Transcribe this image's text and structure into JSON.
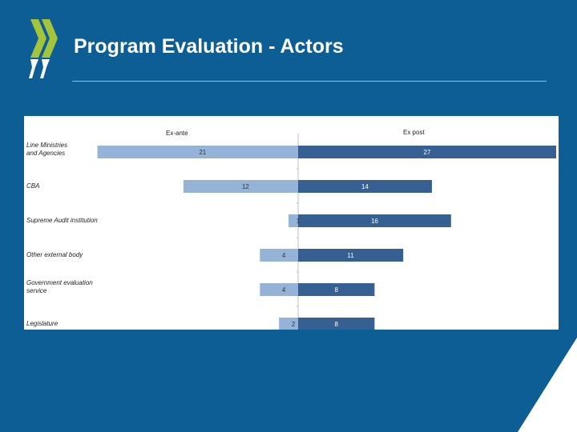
{
  "slide": {
    "title": "Program Evaluation - Actors"
  },
  "colors": {
    "background": "#0d5e95",
    "ex_ante_bar": "#95b3d7",
    "ex_post_bar": "#366092",
    "logo_green": "#a3c43b"
  },
  "icons": {
    "logo": "oecd-chevrons-logo"
  },
  "chart_data": {
    "type": "bar",
    "orientation": "horizontal-diverging",
    "categories": [
      "Line Ministries and Agencies",
      "CBA",
      "Supreme Audit institution",
      "Other external body",
      "Government evaluation service",
      "Legislature"
    ],
    "series": [
      {
        "name": "Ex-ante",
        "values": [
          21,
          12,
          1,
          4,
          4,
          2
        ]
      },
      {
        "name": "Ex post",
        "values": [
          27,
          14,
          16,
          11,
          8,
          8
        ]
      }
    ],
    "xlim": [
      0,
      27
    ],
    "grid": false
  }
}
